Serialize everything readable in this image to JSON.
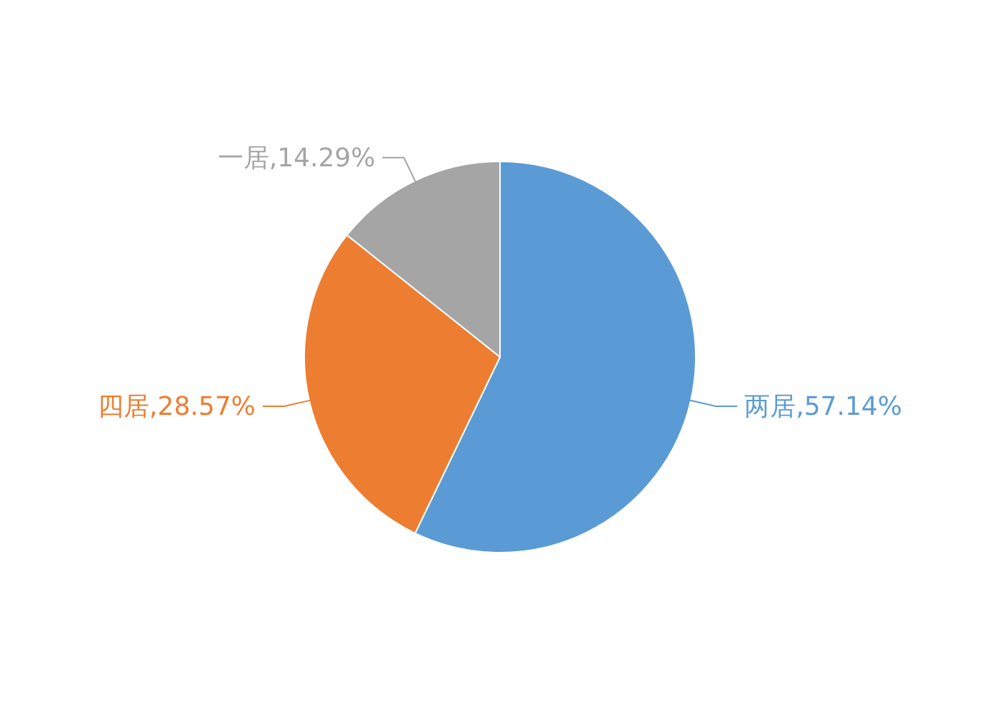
{
  "chart_data": {
    "type": "pie",
    "categories": [
      "两居",
      "四居",
      "一居"
    ],
    "values": [
      57.14,
      28.57,
      14.29
    ],
    "colors": [
      "#5b9bd5",
      "#ed7d31",
      "#a5a5a5"
    ],
    "value_labels": [
      "57.14%",
      "28.57%",
      "14.29%"
    ],
    "legend": false
  }
}
